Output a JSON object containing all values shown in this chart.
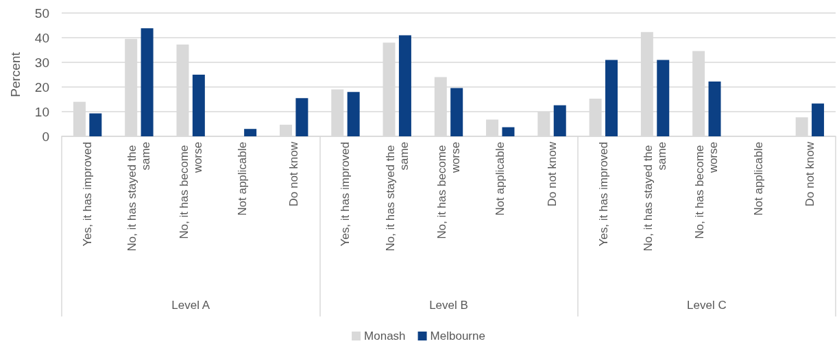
{
  "chart_data": {
    "type": "bar",
    "ylabel": "Percent",
    "categories": [
      "Yes, it has improved",
      "No, it has stayed the same",
      "No, it has become worse",
      "Not applicable",
      "Do not know",
      "Yes, it has improved",
      "No, it has stayed the same",
      "No, it has become worse",
      "Not applicable",
      "Do not know",
      "Yes, it has improved",
      "No, it has stayed the same",
      "No, it has become worse",
      "Not applicable",
      "Do not know"
    ],
    "annotations": [
      "Level A",
      "Level B",
      "Level C"
    ],
    "series": [
      {
        "name": "Monash",
        "color": "#d9d9d9",
        "values": [
          14,
          39.5,
          37.2,
          0,
          4.7,
          19,
          38,
          24,
          6.8,
          10,
          15.3,
          42.3,
          34.6,
          0,
          7.7
        ]
      },
      {
        "name": "Melbourne",
        "color": "#0c4084",
        "values": [
          9.3,
          43.8,
          25,
          3,
          15.5,
          18,
          41,
          19.6,
          3.7,
          12.6,
          31,
          31,
          22.2,
          0,
          13.3
        ]
      }
    ],
    "ylim": [
      0,
      50
    ],
    "yticks": [
      0,
      10,
      20,
      30,
      40,
      50
    ],
    "grid": "y",
    "legend": "bottom"
  }
}
